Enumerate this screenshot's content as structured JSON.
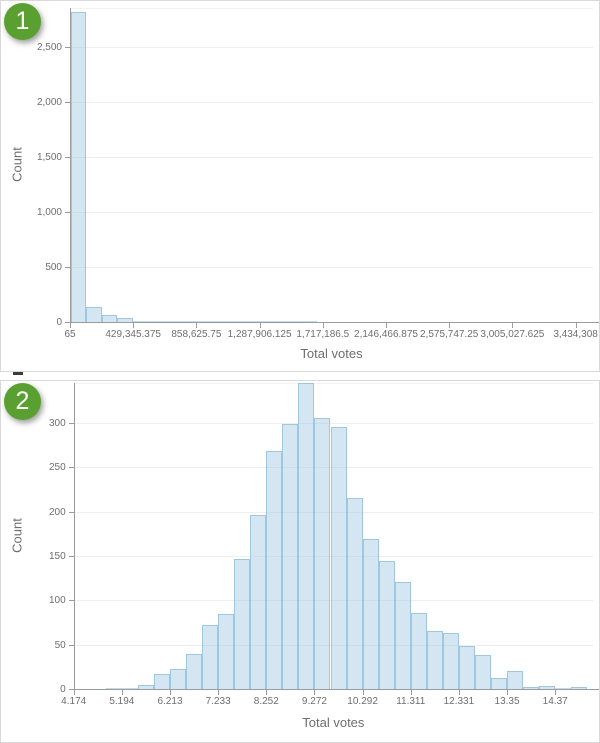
{
  "panels": [
    {
      "badge": "1",
      "ylabel": "Count",
      "xlabel": "Total votes"
    },
    {
      "badge": "2",
      "ylabel": "Count",
      "xlabel": "Total votes"
    }
  ],
  "colors": {
    "badge_green": "#5aa030",
    "bar_fill": "#d9e8f3",
    "bar_stroke": "#b6d4e7",
    "axis_gray": "#9b9b9b",
    "grid_gray": "#eeeeee",
    "text_gray": "#6e6e6e",
    "panel_border": "#d9d9d9"
  },
  "chart_data": [
    {
      "type": "bar",
      "kind": "histogram",
      "title": "",
      "xlabel": "Total votes",
      "ylabel": "Count",
      "grid": true,
      "legend": null,
      "yticks": [
        0,
        500,
        1000,
        1500,
        2000,
        2500
      ],
      "ytick_labels": [
        "0",
        "500",
        "1,000",
        "1,500",
        "2,000",
        "2,500"
      ],
      "ylim": [
        0,
        2854
      ],
      "xtick_labels": [
        "65",
        "429,345.375",
        "858,625.75",
        "1,287,906.125",
        "1,717,186.5",
        "2,146,466.875",
        "2,575,747.25",
        "3,005,027.625",
        "3,434,308"
      ],
      "xlim_labels": [
        65,
        3434308
      ],
      "bins": [
        2818,
        140,
        64,
        34,
        12,
        9,
        8,
        5,
        3,
        2,
        2,
        2,
        2,
        1,
        1,
        1,
        0,
        0,
        0,
        0,
        0,
        0,
        0,
        0,
        0,
        0,
        0,
        0,
        0,
        0,
        0,
        0,
        0,
        0
      ]
    },
    {
      "type": "bar",
      "kind": "histogram",
      "title": "",
      "xlabel": "Total votes",
      "ylabel": "Count",
      "grid": true,
      "legend": null,
      "yticks": [
        0,
        50,
        100,
        150,
        200,
        250,
        300
      ],
      "ytick_labels": [
        "0",
        "50",
        "100",
        "150",
        "200",
        "250",
        "300"
      ],
      "ylim": [
        0,
        345
      ],
      "xtick_labels": [
        "4.174",
        "5.194",
        "6.213",
        "7.233",
        "8.252",
        "9.272",
        "10.292",
        "11.311",
        "12.331",
        "13.35",
        "14.37"
      ],
      "xlim_labels": [
        4.174,
        14.37
      ],
      "bins": [
        0,
        0,
        1,
        1,
        4,
        17,
        22,
        40,
        72,
        85,
        147,
        196,
        268,
        299,
        345,
        306,
        295,
        215,
        169,
        144,
        121,
        86,
        65,
        63,
        48,
        38,
        12,
        20,
        2,
        3,
        1,
        2
      ]
    }
  ]
}
